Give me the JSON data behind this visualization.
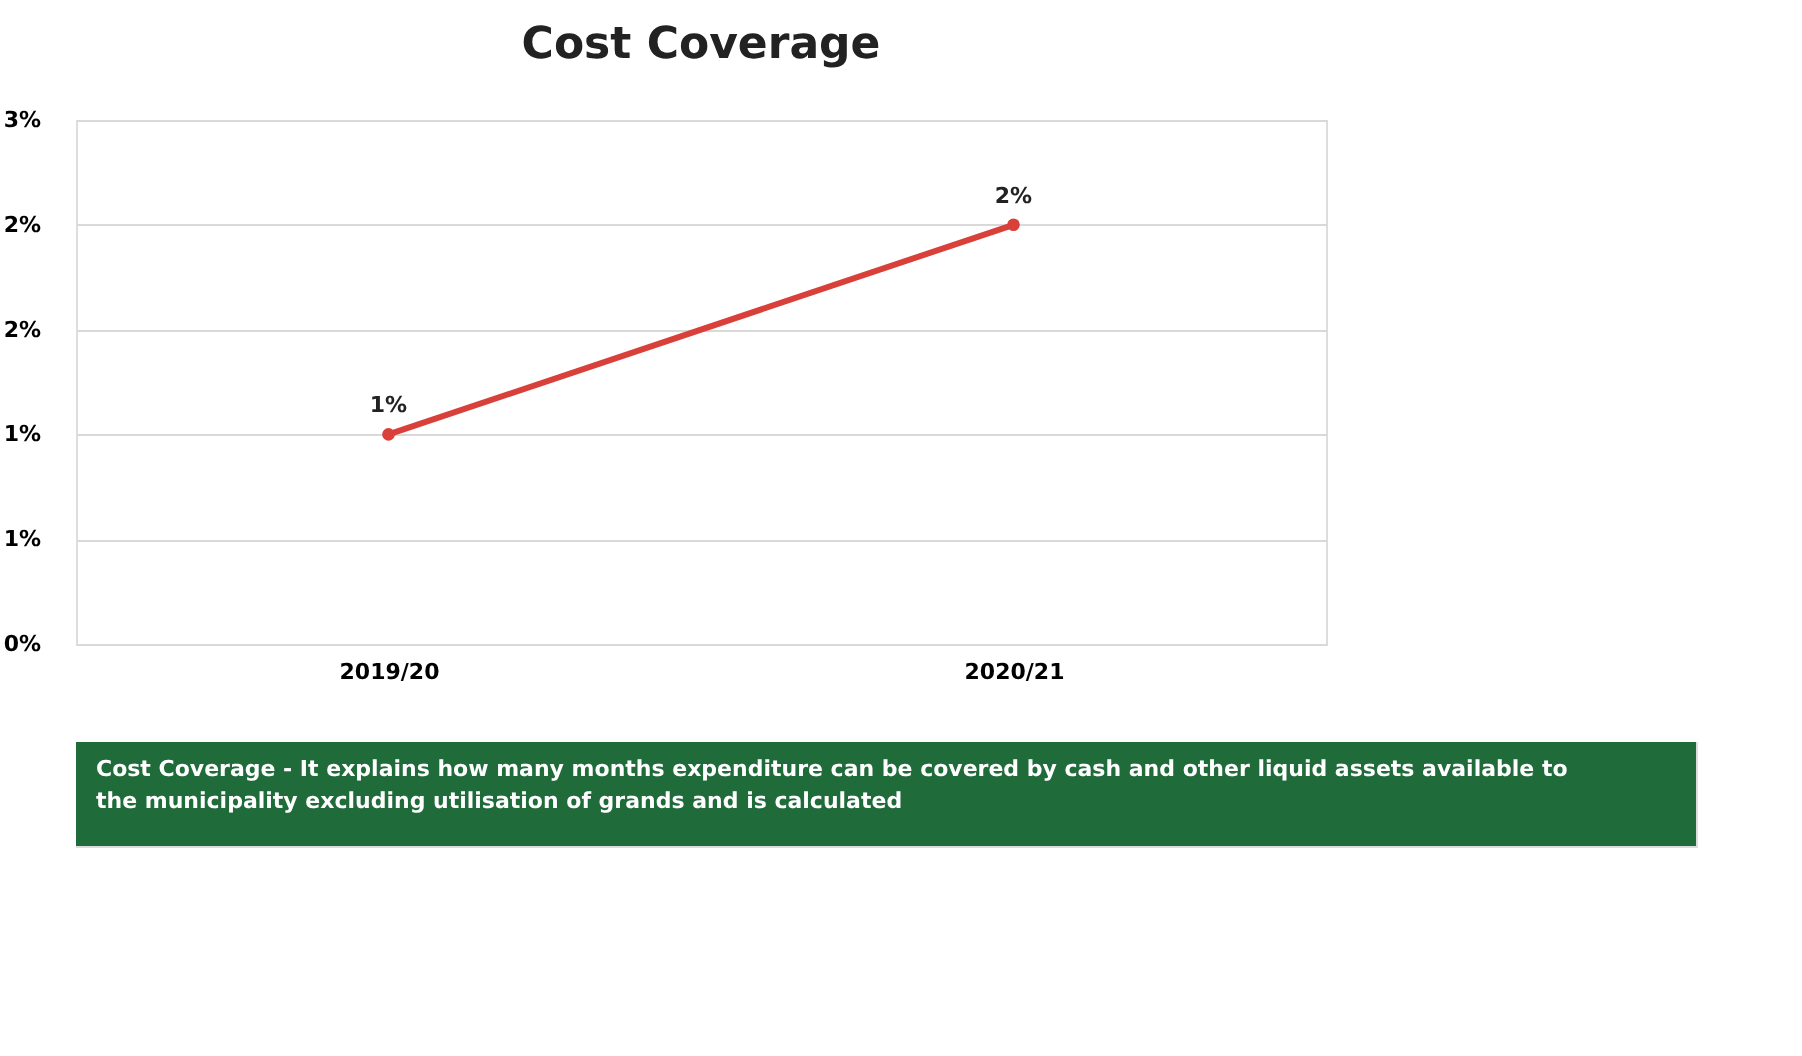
{
  "chart_data": {
    "type": "line",
    "title": "Cost Coverage",
    "categories": [
      "2019/20",
      "2020/21"
    ],
    "series": [
      {
        "color": "#d9403a",
        "values": [
          1,
          2
        ],
        "value_labels": [
          "1%",
          "2%"
        ]
      }
    ],
    "ylim": [
      0,
      2.5
    ],
    "yticks": [
      {
        "value": 0,
        "label": "0%"
      },
      {
        "value": 0.5,
        "label": "1%"
      },
      {
        "value": 1,
        "label": "1%"
      },
      {
        "value": 1.5,
        "label": "2%"
      },
      {
        "value": 2,
        "label": "2%"
      },
      {
        "value": 2.5,
        "label": "3%"
      }
    ],
    "grid": "y",
    "marker": "circle",
    "line_style": "solid",
    "annotations": [
      "Cost Coverage - It explains how many months expenditure can be covered by cash and other liquid assets available to the municipality excluding utilisation of grands and is calculated"
    ]
  }
}
